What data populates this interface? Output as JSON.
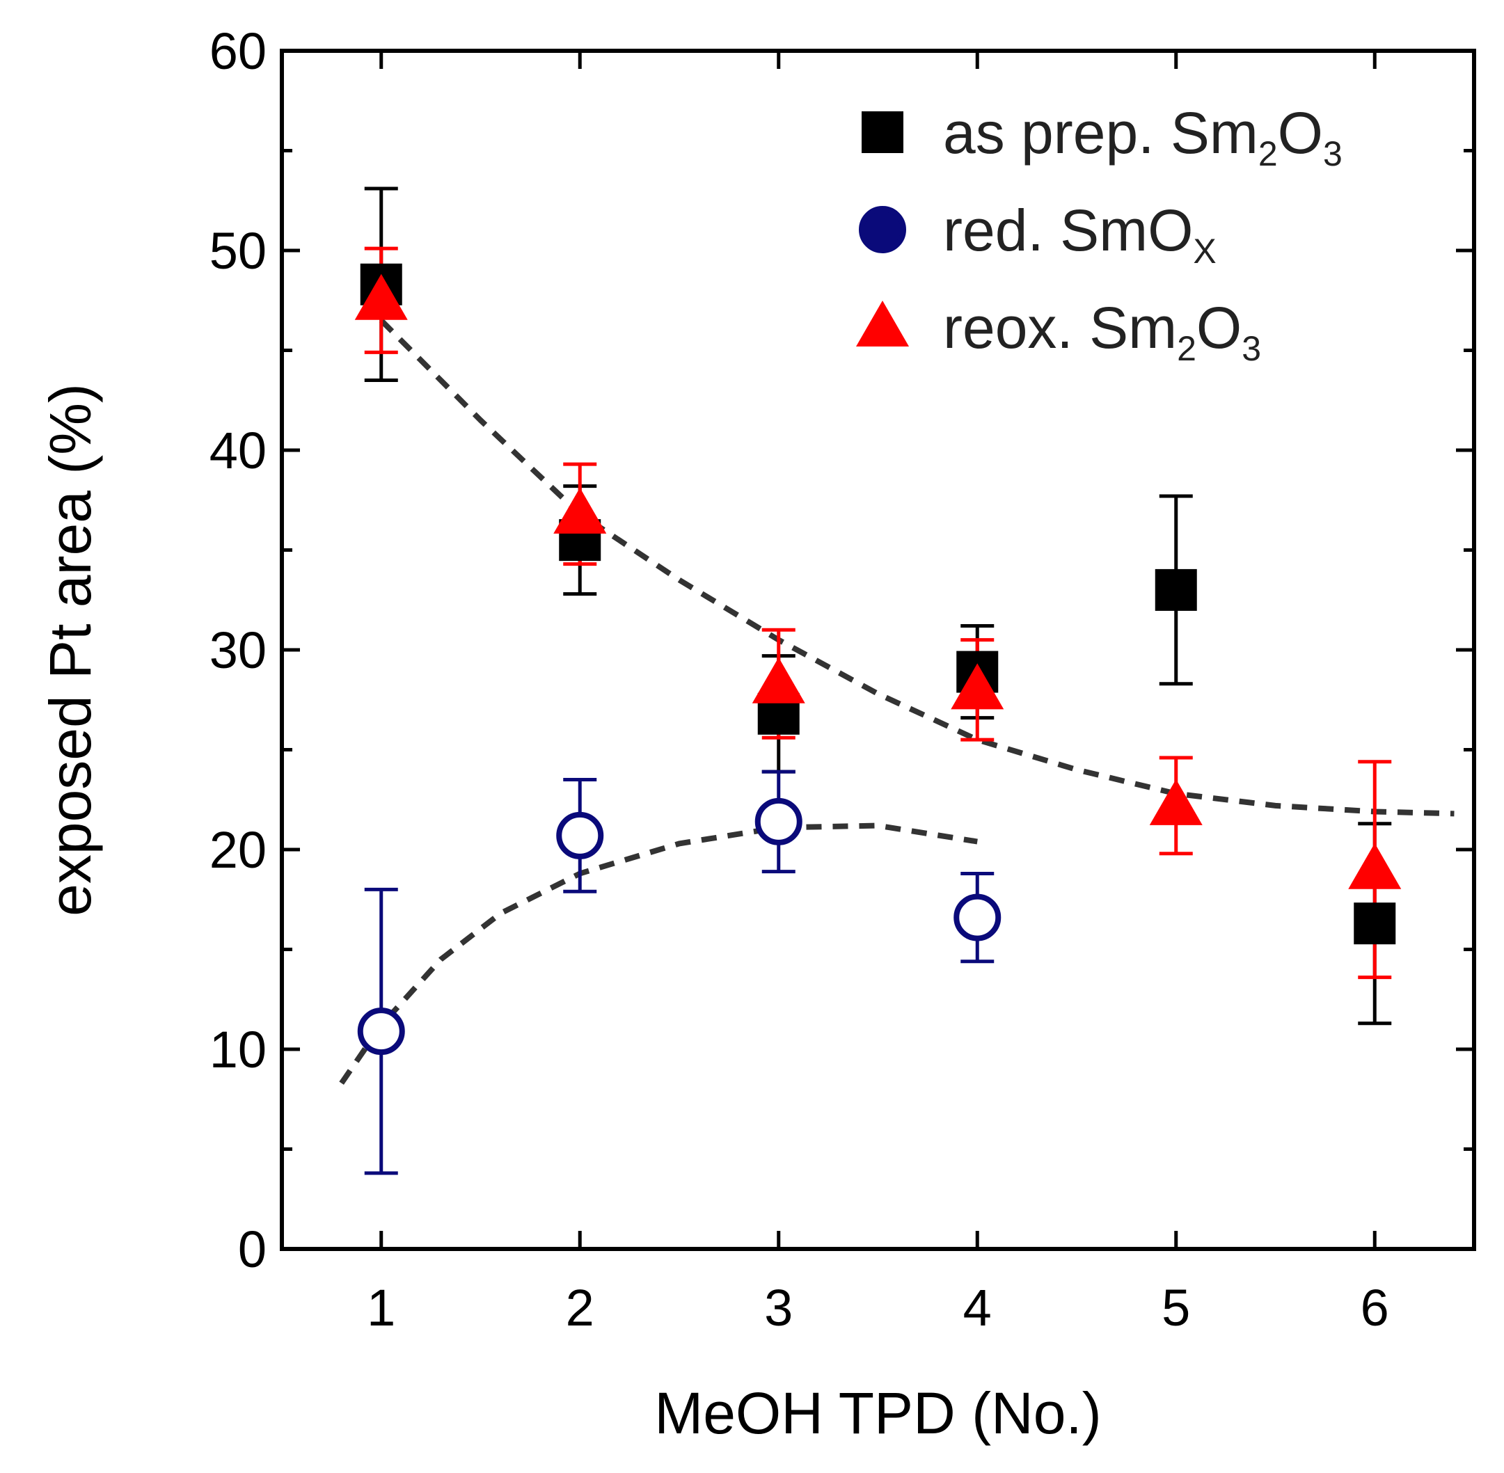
{
  "chart_data": {
    "type": "scatter",
    "title": "",
    "xlabel": "MeOH TPD (No.)",
    "ylabel": "exposed Pt area (%)",
    "xlim": [
      0.5,
      6.5
    ],
    "ylim": [
      0,
      60
    ],
    "xticks": [
      1,
      2,
      3,
      4,
      5,
      6
    ],
    "yticks": [
      0,
      10,
      20,
      30,
      40,
      50,
      60
    ],
    "grid": false,
    "legend_position": "top-right",
    "series": [
      {
        "key": "as_prep",
        "legend_main": "as prep. Sm",
        "legend_sub1": "2",
        "legend_mid": "O",
        "legend_sub2": "3",
        "marker": "square",
        "filled": true,
        "color": "#000000",
        "x": [
          1,
          2,
          3,
          4,
          5,
          6
        ],
        "y": [
          48.3,
          35.5,
          26.8,
          28.9,
          33.0,
          16.3
        ],
        "err": [
          4.8,
          2.7,
          2.9,
          2.3,
          4.7,
          5.0
        ]
      },
      {
        "key": "red",
        "legend_main": "red. SmO",
        "legend_sub1": "X",
        "legend_mid": "",
        "legend_sub2": "",
        "marker": "circle",
        "filled": false,
        "color": "#0a0a7a",
        "x": [
          1,
          2,
          3,
          4
        ],
        "y": [
          10.9,
          20.7,
          21.4,
          16.6
        ],
        "err": [
          7.1,
          2.8,
          2.5,
          2.2
        ]
      },
      {
        "key": "reox",
        "legend_main": "reox. Sm",
        "legend_sub1": "2",
        "legend_mid": "O",
        "legend_sub2": "3",
        "marker": "triangle",
        "filled": true,
        "color": "#ff0000",
        "x": [
          1,
          2,
          3,
          4,
          5,
          6
        ],
        "y": [
          47.5,
          36.8,
          28.3,
          28.0,
          22.2,
          19.0
        ],
        "err": [
          2.6,
          2.5,
          2.7,
          2.5,
          2.4,
          5.4
        ]
      }
    ],
    "fits": [
      {
        "key": "fit_upper",
        "style": "dashed",
        "color": "#333333",
        "x": [
          1.0,
          1.5,
          2.0,
          2.5,
          3.0,
          3.5,
          4.0,
          4.5,
          5.0,
          5.5,
          6.0,
          6.4
        ],
        "y": [
          46.5,
          41.5,
          36.8,
          33.5,
          30.5,
          27.8,
          25.5,
          24.0,
          22.8,
          22.2,
          21.9,
          21.8
        ]
      },
      {
        "key": "fit_lower",
        "style": "dashed",
        "color": "#333333",
        "x": [
          0.8,
          1.0,
          1.3,
          1.6,
          2.0,
          2.5,
          3.0,
          3.5,
          4.0
        ],
        "y": [
          8.3,
          11.2,
          14.5,
          16.8,
          18.8,
          20.3,
          21.1,
          21.2,
          20.4
        ]
      }
    ]
  }
}
